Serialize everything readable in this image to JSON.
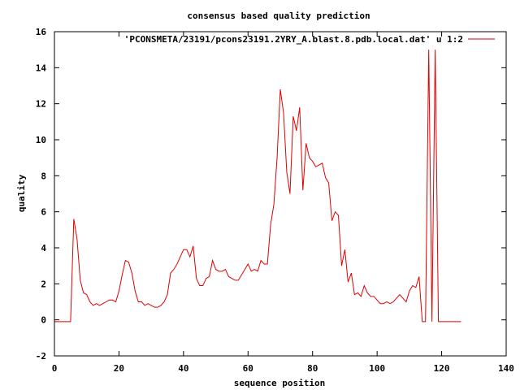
{
  "chart_data": {
    "type": "line",
    "title": "consensus based quality prediction",
    "xlabel": "sequence position",
    "ylabel": "quality",
    "xlim": [
      0,
      140
    ],
    "ylim": [
      -2,
      16
    ],
    "xticks": [
      0,
      20,
      40,
      60,
      80,
      100,
      120,
      140
    ],
    "yticks": [
      -2,
      0,
      2,
      4,
      6,
      8,
      10,
      12,
      14,
      16
    ],
    "grid": false,
    "legend_position": "top-right",
    "series": [
      {
        "name": "'PCONSMETA/23191/pcons23191.2YRY_A.blast.8.pdb.local.dat' u 1:2",
        "color": "#e00000",
        "x": [
          0,
          1,
          2,
          3,
          4,
          5,
          6,
          7,
          8,
          9,
          10,
          11,
          12,
          13,
          14,
          15,
          16,
          17,
          18,
          19,
          20,
          21,
          22,
          23,
          24,
          25,
          26,
          27,
          28,
          29,
          30,
          31,
          32,
          33,
          34,
          35,
          36,
          37,
          38,
          39,
          40,
          41,
          42,
          43,
          44,
          45,
          46,
          47,
          48,
          49,
          50,
          51,
          52,
          53,
          54,
          55,
          56,
          57,
          58,
          59,
          60,
          61,
          62,
          63,
          64,
          65,
          66,
          67,
          68,
          69,
          70,
          71,
          72,
          73,
          74,
          75,
          76,
          77,
          78,
          79,
          80,
          81,
          82,
          83,
          84,
          85,
          86,
          87,
          88,
          89,
          90,
          91,
          92,
          93,
          94,
          95,
          96,
          97,
          98,
          99,
          100,
          101,
          102,
          103,
          104,
          105,
          106,
          107,
          108,
          109,
          110,
          111,
          112,
          113,
          114,
          115,
          116,
          117,
          118,
          119,
          120,
          121,
          122,
          123,
          124,
          125,
          126
        ],
        "y": [
          -0.1,
          -0.1,
          -0.1,
          -0.1,
          -0.1,
          -0.1,
          5.6,
          4.5,
          2.2,
          1.5,
          1.4,
          1.0,
          0.8,
          0.9,
          0.8,
          0.9,
          1.0,
          1.1,
          1.1,
          1.0,
          1.6,
          2.5,
          3.3,
          3.2,
          2.6,
          1.6,
          1.0,
          1.0,
          0.8,
          0.9,
          0.8,
          0.7,
          0.7,
          0.8,
          1.0,
          1.4,
          2.6,
          2.8,
          3.1,
          3.5,
          3.9,
          3.9,
          3.5,
          4.1,
          2.3,
          1.9,
          1.9,
          2.3,
          2.4,
          3.3,
          2.8,
          2.7,
          2.7,
          2.8,
          2.4,
          2.3,
          2.2,
          2.2,
          2.5,
          2.8,
          3.1,
          2.7,
          2.8,
          2.7,
          3.3,
          3.1,
          3.1,
          5.3,
          6.4,
          9.0,
          12.8,
          11.5,
          8.2,
          7.0,
          11.3,
          10.5,
          11.8,
          7.2,
          9.8,
          9.0,
          8.8,
          8.5,
          8.6,
          8.7,
          7.9,
          7.6,
          5.5,
          6.0,
          5.8,
          3.0,
          3.9,
          2.1,
          2.6,
          1.4,
          1.5,
          1.3,
          1.9,
          1.5,
          1.3,
          1.3,
          1.1,
          0.9,
          0.9,
          1.0,
          0.9,
          1.0,
          1.2,
          1.4,
          1.2,
          1.0,
          1.6,
          1.9,
          1.8,
          2.4,
          -0.1,
          -0.1,
          15.0,
          -0.1,
          15.0,
          -0.1,
          -0.1,
          -0.1,
          -0.1,
          -0.1,
          -0.1,
          -0.1,
          -0.1
        ]
      }
    ]
  }
}
